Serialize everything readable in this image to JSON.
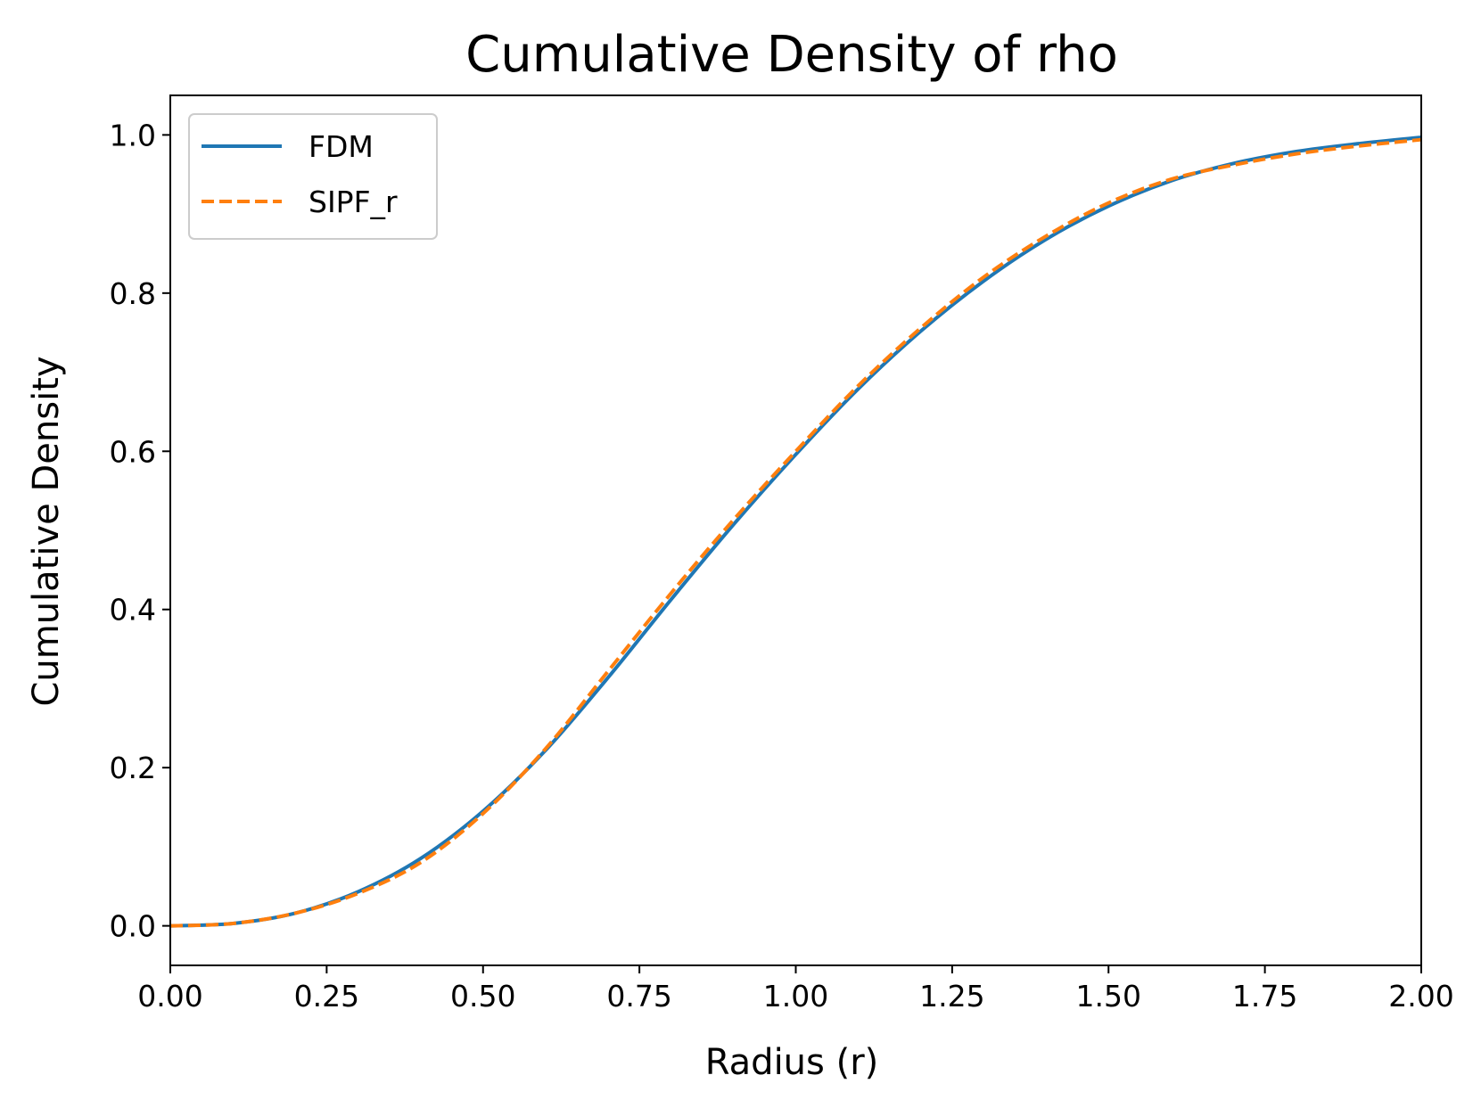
{
  "chart_data": {
    "type": "line",
    "title": "Cumulative Density of rho",
    "xlabel": "Radius (r)",
    "ylabel": "Cumulative Density",
    "xlim": [
      0.0,
      2.0
    ],
    "ylim": [
      -0.05,
      1.05
    ],
    "x_ticks": [
      "0.00",
      "0.25",
      "0.50",
      "0.75",
      "1.00",
      "1.25",
      "1.50",
      "1.75",
      "2.00"
    ],
    "y_ticks": [
      "0.0",
      "0.2",
      "0.4",
      "0.6",
      "0.8",
      "1.0"
    ],
    "x_tick_values": [
      0.0,
      0.25,
      0.5,
      0.75,
      1.0,
      1.25,
      1.5,
      1.75,
      2.0
    ],
    "y_tick_values": [
      0.0,
      0.2,
      0.4,
      0.6,
      0.8,
      1.0
    ],
    "grid": false,
    "legend_position": "top-left",
    "x": [
      0.0,
      0.1,
      0.2,
      0.3,
      0.4,
      0.5,
      0.6,
      0.7,
      0.8,
      0.9,
      1.0,
      1.1,
      1.2,
      1.3,
      1.4,
      1.5,
      1.6,
      1.7,
      1.8,
      1.9,
      2.0
    ],
    "series": [
      {
        "name": "FDM",
        "color": "#1f77b4",
        "style": "solid",
        "values": [
          0.0,
          0.003,
          0.016,
          0.043,
          0.085,
          0.145,
          0.222,
          0.314,
          0.412,
          0.507,
          0.596,
          0.679,
          0.752,
          0.815,
          0.868,
          0.91,
          0.942,
          0.964,
          0.979,
          0.989,
          0.997
        ]
      },
      {
        "name": "SIPF_r",
        "color": "#ff7f0e",
        "style": "dashed",
        "values": [
          0.0,
          0.003,
          0.016,
          0.041,
          0.08,
          0.142,
          0.224,
          0.322,
          0.42,
          0.513,
          0.6,
          0.683,
          0.756,
          0.82,
          0.872,
          0.914,
          0.944,
          0.962,
          0.976,
          0.986,
          0.994
        ]
      }
    ]
  }
}
